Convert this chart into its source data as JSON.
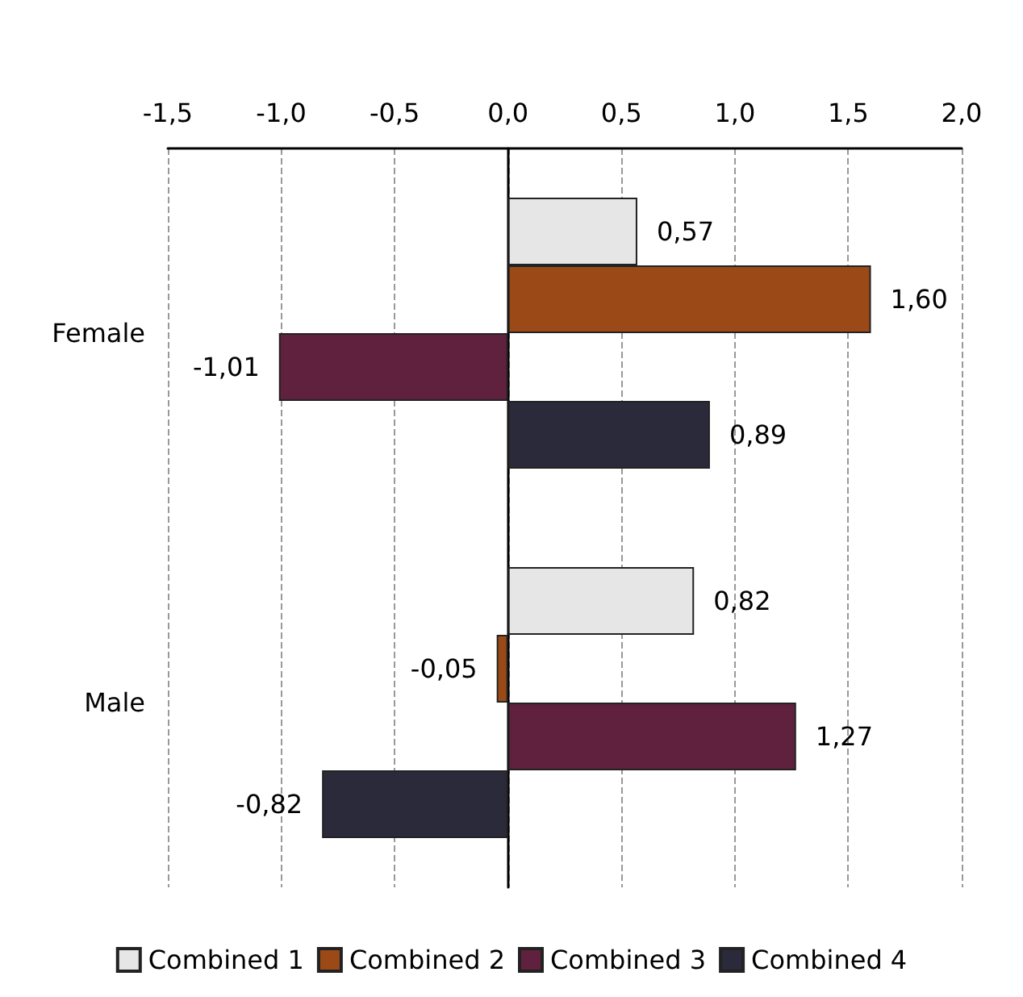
{
  "chart_data": {
    "type": "bar",
    "orientation": "horizontal",
    "categories": [
      "Female",
      "Male"
    ],
    "series": [
      {
        "name": "Combined 1",
        "color": "#e6e6e6",
        "values": [
          0.57,
          0.82
        ],
        "value_labels": [
          "0,57",
          "0,82"
        ]
      },
      {
        "name": "Combined 2",
        "color": "#9b4a17",
        "values": [
          1.6,
          -0.05
        ],
        "value_labels": [
          "1,60",
          "-0,05"
        ]
      },
      {
        "name": "Combined 3",
        "color": "#5f213d",
        "values": [
          -1.01,
          1.27
        ],
        "value_labels": [
          "-1,01",
          "1,27"
        ]
      },
      {
        "name": "Combined 4",
        "color": "#2b2a3a",
        "values": [
          0.89,
          -0.82
        ],
        "value_labels": [
          "0,89",
          "-0,82"
        ]
      }
    ],
    "xlim": [
      -1.5,
      2.0
    ],
    "xticks": [
      {
        "value": -1.5,
        "label": "-1,5"
      },
      {
        "value": -1.0,
        "label": "-1,0"
      },
      {
        "value": -0.5,
        "label": "-0,5"
      },
      {
        "value": 0,
        "label": "0,0"
      },
      {
        "value": 0.5,
        "label": "0,5"
      },
      {
        "value": 1.0,
        "label": "1,0"
      },
      {
        "value": 1.5,
        "label": "1,5"
      },
      {
        "value": 2.0,
        "label": "2,0"
      }
    ],
    "grid": "x",
    "legend": "bottom"
  }
}
